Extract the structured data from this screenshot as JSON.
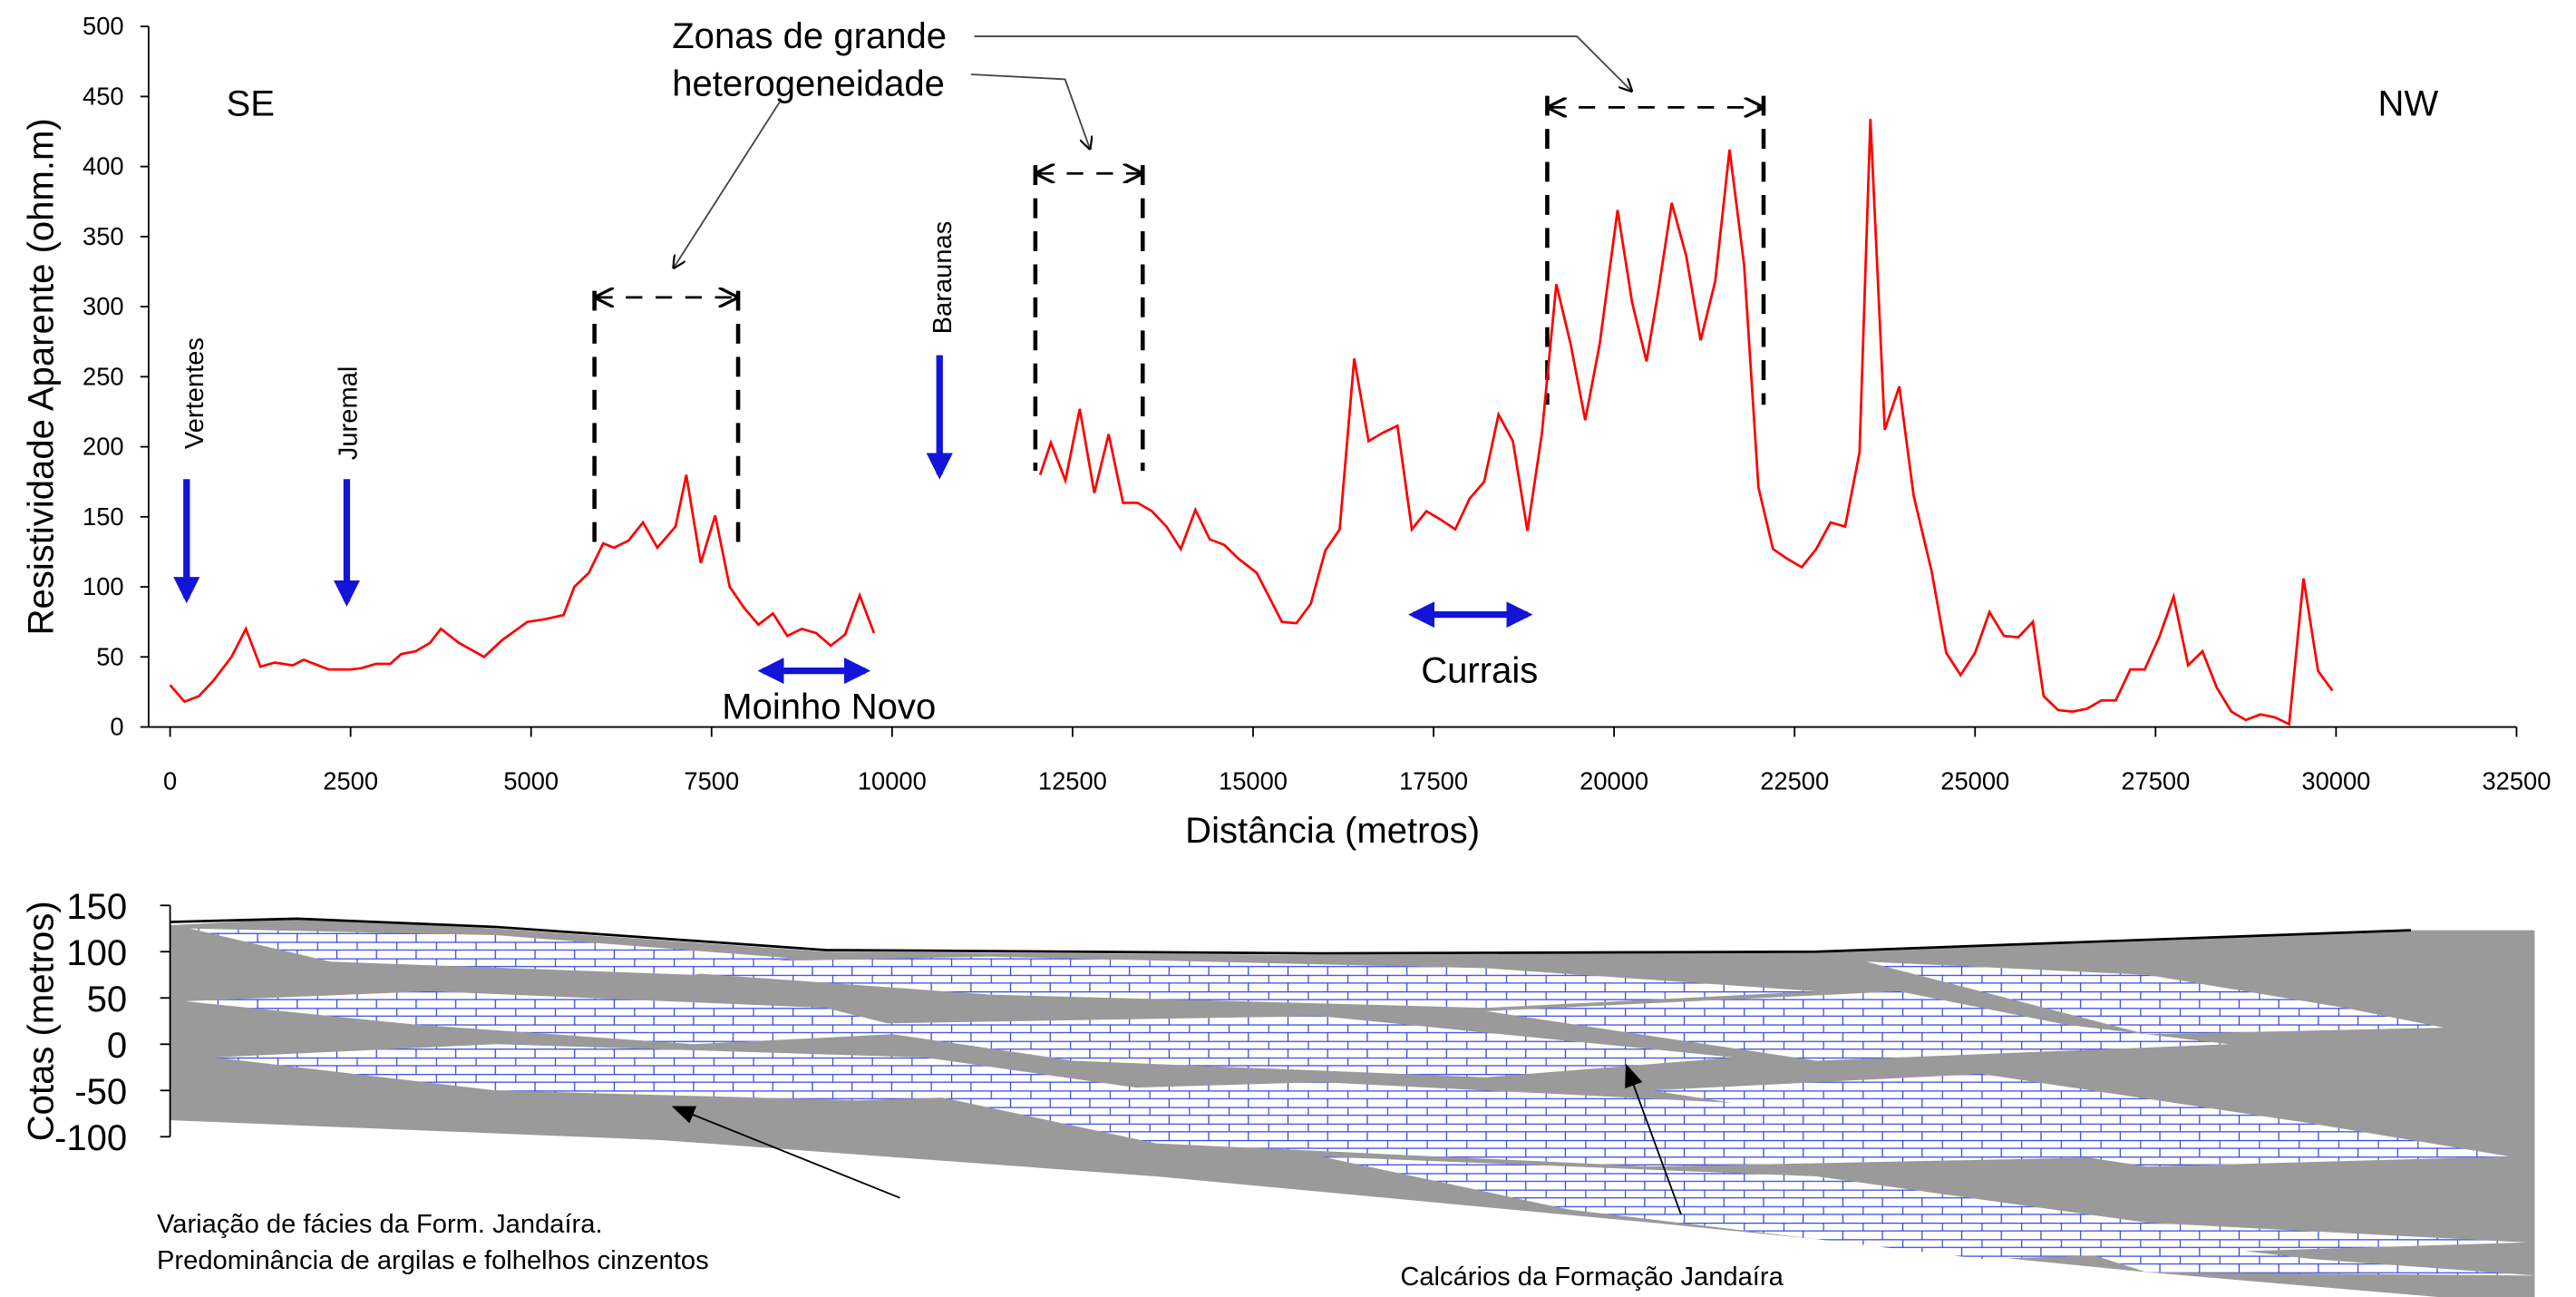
{
  "chart_data": [
    {
      "type": "line",
      "ylabel": "Resistividade Aparente (ohm.m)",
      "xlabel": "Distância (metros)",
      "annotations": [
        "SE",
        "NW",
        "Zonas de grande",
        "heterogeneidade",
        "Vertentes",
        "Juremal",
        "Baraunas",
        "Moinho Novo",
        "Currais"
      ],
      "color": "#ff0000",
      "x": [
        0,
        200,
        400,
        600,
        850,
        1050,
        1250,
        1450,
        1700,
        1850,
        2050,
        2200,
        2500,
        2650,
        2850,
        3050,
        3200,
        3400,
        3600,
        3750,
        4000,
        4350,
        4600,
        4950,
        5200,
        5450,
        5600,
        5800,
        6000,
        6150,
        6350,
        6550,
        6750,
        7000,
        7150,
        7350,
        7550,
        7750,
        7950,
        8150,
        8350,
        8550,
        8750,
        8950,
        9150,
        9350,
        9550,
        9750,
        10900,
        12050,
        12200,
        12400,
        12600,
        12800,
        13000,
        13200,
        13400,
        13600,
        13800,
        14000,
        14200,
        14400,
        14600,
        14800,
        15050,
        15200,
        15400,
        15600,
        15800,
        16000,
        16200,
        16400,
        16600,
        16800,
        17000,
        17200,
        17400,
        17600,
        17800,
        18000,
        18200,
        18400,
        18600,
        18800,
        19000,
        19200,
        19400,
        19600,
        19800,
        20050,
        20250,
        20450,
        20600,
        20800,
        21000,
        21200,
        21400,
        21600,
        21800,
        22000,
        22200,
        22400,
        22600,
        22800,
        23000,
        23200,
        23400,
        23550,
        23750,
        23950,
        24150,
        24400,
        24600,
        24800,
        25000,
        25200,
        25400,
        25600,
        25800,
        25950,
        26150,
        26350,
        26550,
        26750,
        26950,
        27150,
        27350,
        27550,
        27750,
        27950,
        28150,
        28350,
        28550,
        28750,
        28950,
        29150,
        29350,
        29550,
        29750,
        29950
      ],
      "values": [
        30,
        18,
        22,
        33,
        50,
        70,
        43,
        46,
        44,
        48,
        44,
        41,
        41,
        42,
        45,
        45,
        52,
        54,
        60,
        70,
        60,
        50,
        62,
        75,
        77,
        80,
        100,
        110,
        131,
        128,
        133,
        146,
        128,
        143,
        180,
        117,
        151,
        100,
        85,
        73,
        81,
        65,
        70,
        67,
        58,
        66,
        94,
        67,
        null,
        180,
        203,
        176,
        227,
        167,
        209,
        160,
        160,
        154,
        143,
        127,
        155,
        134,
        130,
        120,
        110,
        95,
        75,
        74,
        88,
        126,
        141,
        263,
        204,
        210,
        215,
        141,
        154,
        148,
        141,
        163,
        175,
        223,
        204,
        140,
        209,
        316,
        273,
        219,
        273,
        369,
        303,
        261,
        307,
        374,
        336,
        276,
        318,
        412,
        330,
        171,
        127,
        120,
        114,
        127,
        146,
        143,
        196,
        434,
        212,
        243,
        165,
        111,
        53,
        37,
        53,
        82,
        65,
        64,
        75,
        22,
        12,
        11,
        13,
        19,
        19,
        41,
        41,
        64,
        93,
        44,
        54,
        28,
        11,
        5,
        9,
        7,
        2,
        106,
        40,
        26
      ],
      "xlim": [
        0,
        32500
      ],
      "xticks": [
        0,
        2500,
        5000,
        7500,
        10000,
        12500,
        15000,
        17500,
        20000,
        22500,
        25000,
        27500,
        30000,
        32500
      ],
      "ylim": [
        0,
        500
      ],
      "yticks": [
        0,
        50,
        100,
        150,
        200,
        250,
        300,
        350,
        400,
        450,
        500
      ]
    },
    {
      "type": "cross-section",
      "ylabel": "Cotas (metros)",
      "annotations": [
        "Variação de fácies da Form. Jandaíra.",
        "Predominância de argilas e folhelhos cinzentos",
        "Calcários da Formação Jandaíra"
      ],
      "ylim": [
        -100,
        150
      ],
      "yticks": [
        -100,
        -50,
        0,
        50,
        100,
        150
      ]
    }
  ]
}
